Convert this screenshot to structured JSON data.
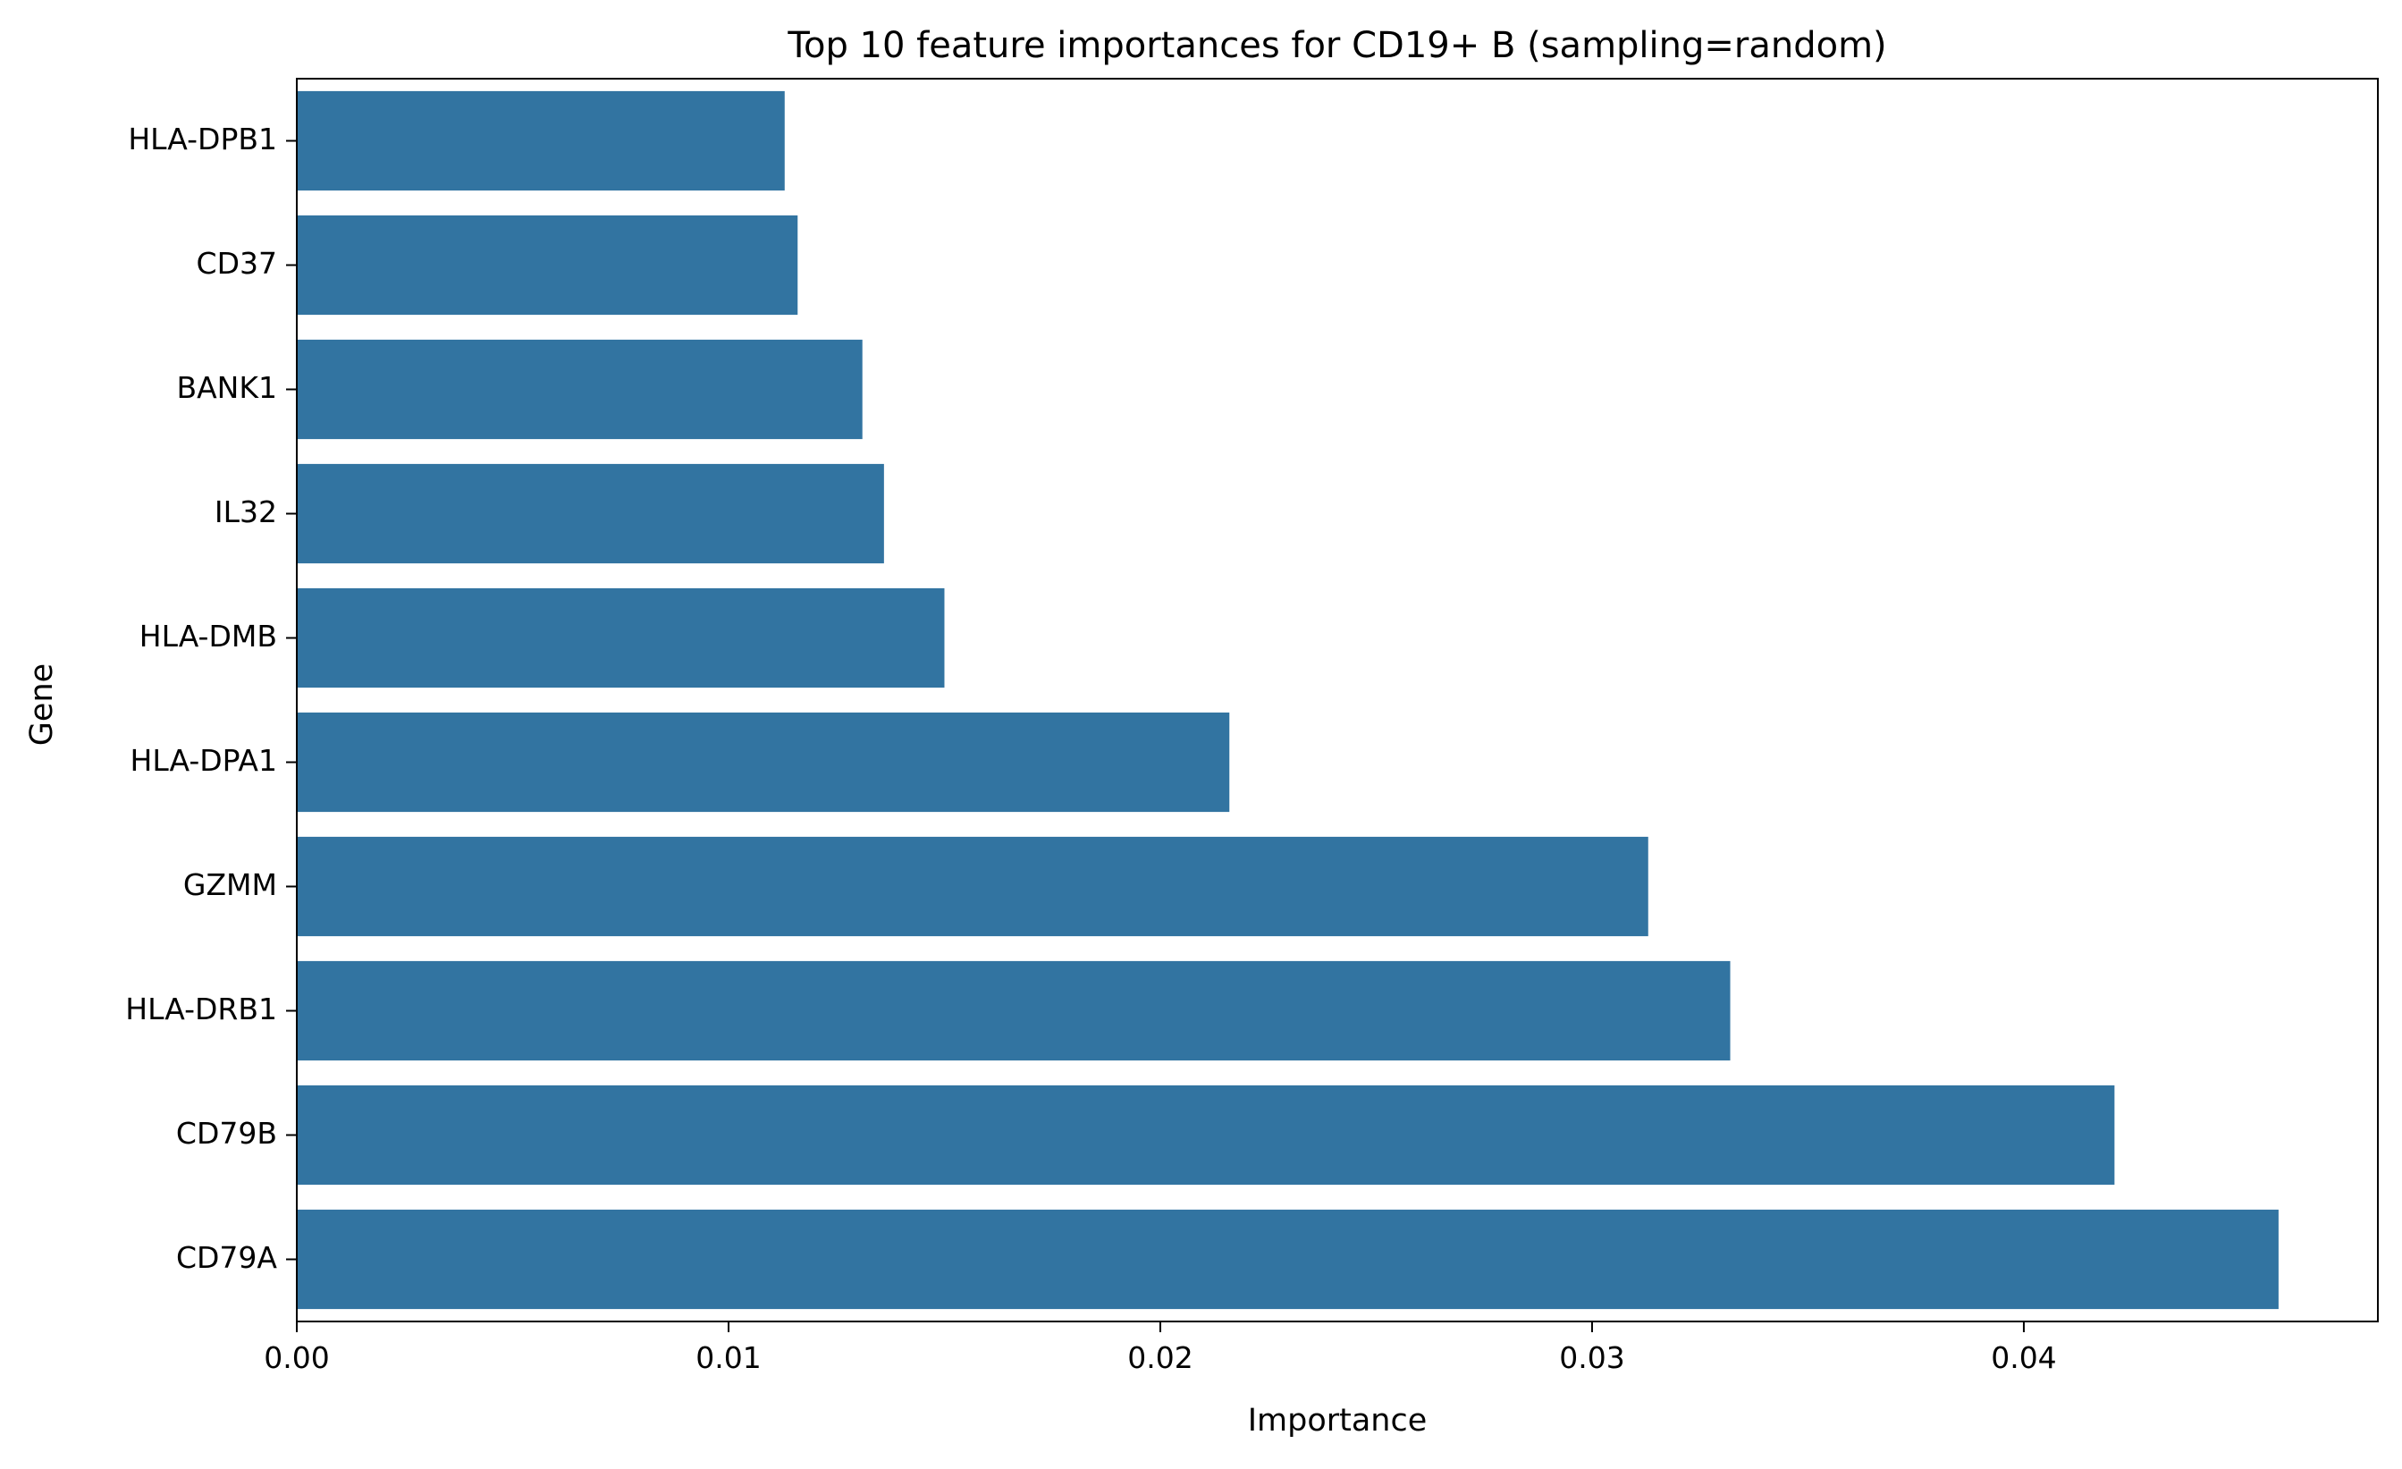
{
  "chart_data": {
    "type": "bar",
    "orientation": "horizontal",
    "title": "Top 10 feature importances for CD19+ B (sampling=random)",
    "xlabel": "Importance",
    "ylabel": "Gene",
    "categories": [
      "HLA-DPB1",
      "CD37",
      "BANK1",
      "IL32",
      "HLA-DMB",
      "HLA-DPA1",
      "GZMM",
      "HLA-DRB1",
      "CD79B",
      "CD79A"
    ],
    "values": [
      0.0113,
      0.0116,
      0.0131,
      0.0136,
      0.015,
      0.0216,
      0.0313,
      0.0332,
      0.0421,
      0.0459
    ],
    "xlim": [
      0,
      0.0482
    ],
    "xticks": [
      0,
      0.01,
      0.02,
      0.03,
      0.04
    ],
    "xtick_labels": [
      "0.00",
      "0.01",
      "0.02",
      "0.03",
      "0.04"
    ],
    "bar_color": "#3274a1",
    "grid": false,
    "legend": "none"
  }
}
